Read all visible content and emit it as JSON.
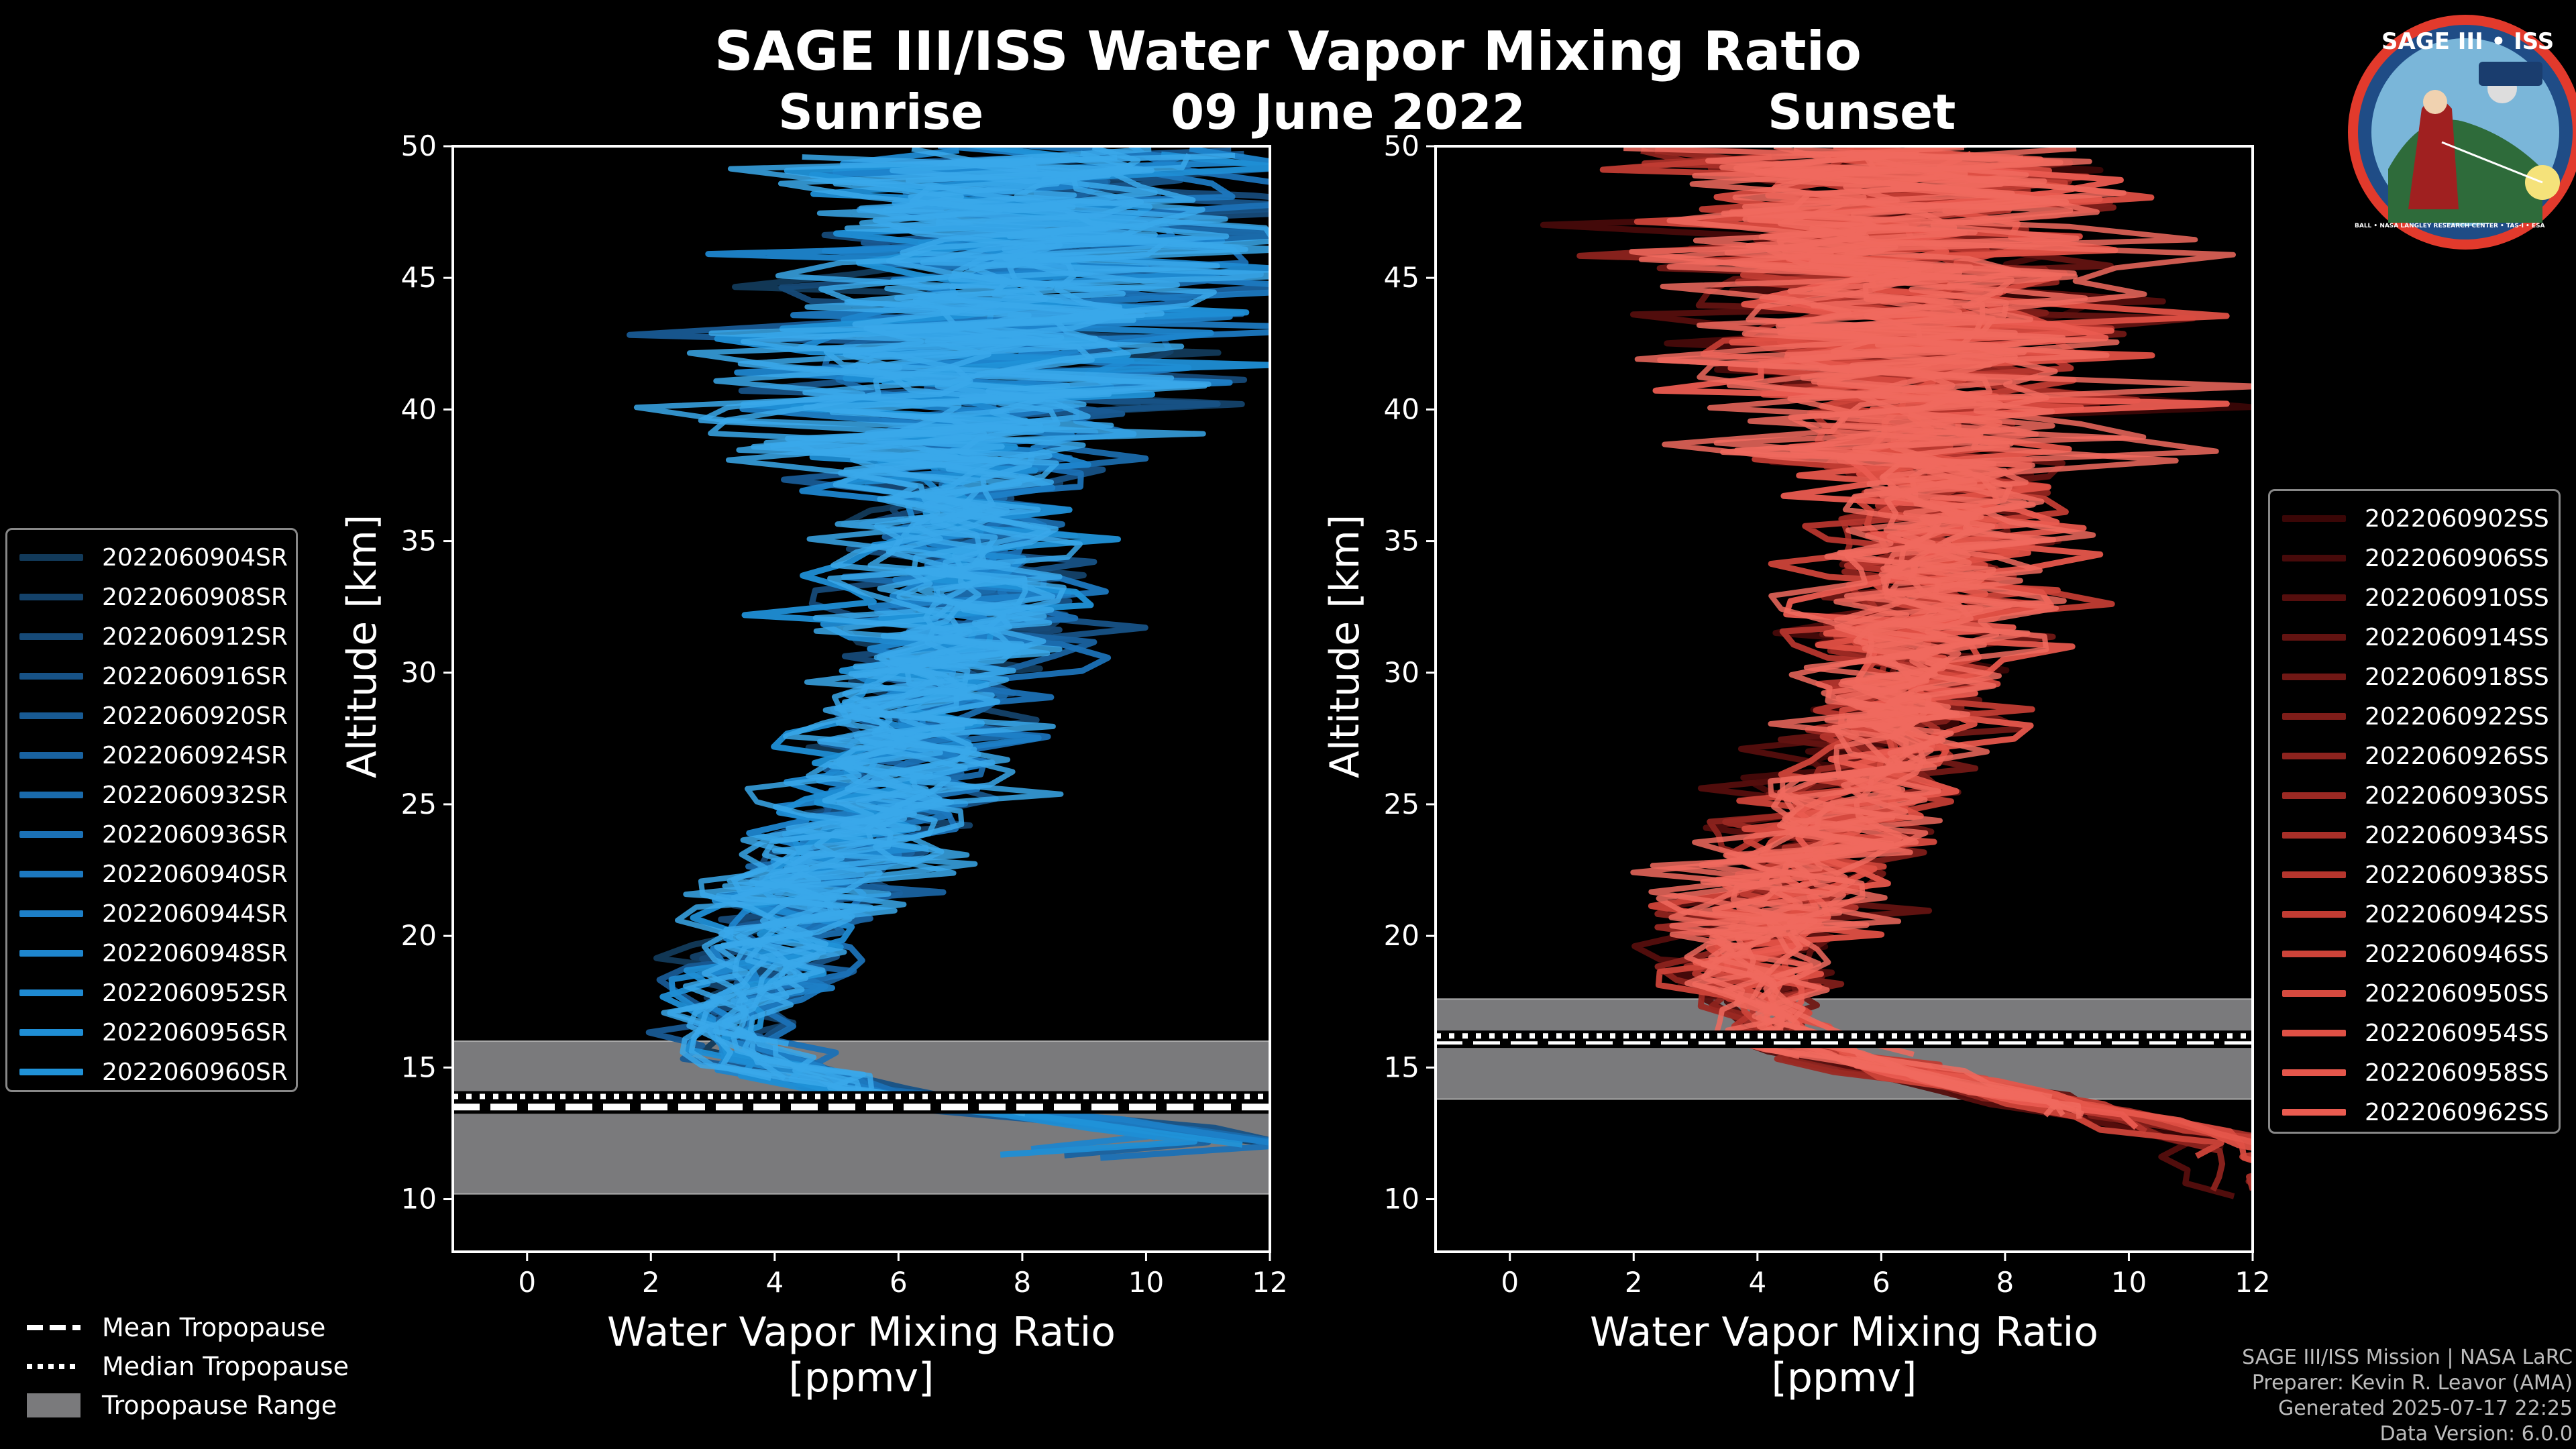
{
  "header": {
    "title": "SAGE III/ISS Water Vapor Mixing Ratio",
    "date": "09 June 2022",
    "left_label": "Sunrise",
    "right_label": "Sunset"
  },
  "colors": {
    "sunrise": "#1f8fd6",
    "sunset": "#e8544a",
    "tropopause_range": "#7a7a7c",
    "frame": "#ffffff"
  },
  "logo": {
    "title": "SAGE III • ISS",
    "ring_text": "BALL • NASA LANGLEY RESEARCH CENTER • TAS-I • ESA"
  },
  "chart_data": [
    {
      "type": "line",
      "panel": "Sunrise",
      "xlabel": "Water Vapor Mixing Ratio\n[ppmv]",
      "ylabel": "Altitude [km]",
      "xlim": [
        -1.2,
        12
      ],
      "ylim": [
        8,
        50
      ],
      "xticks": [
        0,
        2,
        4,
        6,
        8,
        10,
        12
      ],
      "yticks": [
        10,
        15,
        20,
        25,
        30,
        35,
        40,
        45,
        50
      ],
      "tropopause": {
        "range": [
          10.2,
          16.0
        ],
        "mean": 13.5,
        "median": 13.9
      },
      "mean_profile": [
        [
          12.0,
          12.0
        ],
        [
          13.0,
          9.0
        ],
        [
          14.0,
          5.5
        ],
        [
          15.0,
          4.0
        ],
        [
          16.0,
          3.2
        ],
        [
          17.0,
          3.3
        ],
        [
          18.0,
          3.6
        ],
        [
          19.0,
          3.9
        ],
        [
          20.0,
          4.0
        ],
        [
          21.0,
          4.2
        ],
        [
          22.0,
          4.5
        ],
        [
          23.0,
          4.9
        ],
        [
          24.0,
          5.4
        ],
        [
          25.0,
          5.8
        ],
        [
          26.0,
          6.0
        ],
        [
          27.0,
          6.0
        ],
        [
          28.0,
          6.2
        ],
        [
          29.0,
          6.4
        ],
        [
          30.0,
          6.6
        ],
        [
          31.0,
          6.8
        ],
        [
          32.0,
          7.0
        ],
        [
          33.0,
          7.1
        ],
        [
          34.0,
          7.1
        ],
        [
          35.0,
          7.0
        ],
        [
          36.0,
          6.9
        ],
        [
          37.0,
          6.8
        ],
        [
          38.0,
          6.9
        ],
        [
          39.0,
          7.0
        ],
        [
          40.0,
          7.2
        ],
        [
          42.0,
          7.5
        ],
        [
          44.0,
          7.8
        ],
        [
          46.0,
          8.0
        ],
        [
          48.0,
          8.2
        ],
        [
          50.0,
          8.4
        ]
      ],
      "series": [
        {
          "name": "2022060904SR",
          "color": "#123a5a"
        },
        {
          "name": "2022060908SR",
          "color": "#14426a"
        },
        {
          "name": "2022060912SR",
          "color": "#164a78"
        },
        {
          "name": "2022060916SR",
          "color": "#175286"
        },
        {
          "name": "2022060920SR",
          "color": "#185a93"
        },
        {
          "name": "2022060924SR",
          "color": "#1962a0"
        },
        {
          "name": "2022060932SR",
          "color": "#1a6aab"
        },
        {
          "name": "2022060936SR",
          "color": "#1b71b6"
        },
        {
          "name": "2022060940SR",
          "color": "#1c78bf"
        },
        {
          "name": "2022060944SR",
          "color": "#1d7fc7"
        },
        {
          "name": "2022060948SR",
          "color": "#1e85cd"
        },
        {
          "name": "2022060952SR",
          "color": "#1f8ad2"
        },
        {
          "name": "2022060956SR",
          "color": "#1f8ed5"
        },
        {
          "name": "2022060960SR",
          "color": "#2092d8"
        }
      ]
    },
    {
      "type": "line",
      "panel": "Sunset",
      "xlabel": "Water Vapor Mixing Ratio\n[ppmv]",
      "ylabel": "Altitude [km]",
      "xlim": [
        -1.2,
        12
      ],
      "ylim": [
        8,
        50
      ],
      "xticks": [
        0,
        2,
        4,
        6,
        8,
        10,
        12
      ],
      "yticks": [
        10,
        15,
        20,
        25,
        30,
        35,
        40,
        45,
        50
      ],
      "tropopause": {
        "range": [
          13.8,
          17.6
        ],
        "mean": 16.0,
        "median": 16.2
      },
      "mean_profile": [
        [
          10.0,
          12.0
        ],
        [
          12.0,
          12.0
        ],
        [
          14.0,
          8.0
        ],
        [
          15.0,
          6.0
        ],
        [
          16.0,
          4.6
        ],
        [
          17.0,
          4.2
        ],
        [
          18.0,
          4.0
        ],
        [
          19.0,
          4.0
        ],
        [
          20.0,
          4.1
        ],
        [
          21.0,
          4.2
        ],
        [
          22.0,
          4.4
        ],
        [
          23.0,
          4.7
        ],
        [
          24.0,
          5.0
        ],
        [
          25.0,
          5.3
        ],
        [
          26.0,
          5.6
        ],
        [
          27.0,
          5.9
        ],
        [
          28.0,
          6.2
        ],
        [
          29.0,
          6.4
        ],
        [
          30.0,
          6.5
        ],
        [
          31.0,
          6.6
        ],
        [
          32.0,
          6.7
        ],
        [
          33.0,
          6.8
        ],
        [
          34.0,
          6.9
        ],
        [
          35.0,
          6.9
        ],
        [
          36.0,
          6.9
        ],
        [
          37.0,
          6.8
        ],
        [
          38.0,
          6.7
        ],
        [
          39.0,
          6.6
        ],
        [
          40.0,
          6.5
        ],
        [
          42.0,
          6.5
        ],
        [
          44.0,
          6.4
        ],
        [
          46.0,
          6.3
        ],
        [
          48.0,
          6.2
        ],
        [
          50.0,
          6.0
        ]
      ],
      "series": [
        {
          "name": "2022060902SS",
          "color": "#3a0606"
        },
        {
          "name": "2022060906SS",
          "color": "#470a0a"
        },
        {
          "name": "2022060910SS",
          "color": "#550e0d"
        },
        {
          "name": "2022060914SS",
          "color": "#631311"
        },
        {
          "name": "2022060918SS",
          "color": "#711815"
        },
        {
          "name": "2022060922SS",
          "color": "#7f1d19"
        },
        {
          "name": "2022060926SS",
          "color": "#8d231e"
        },
        {
          "name": "2022060930SS",
          "color": "#9b2923"
        },
        {
          "name": "2022060934SS",
          "color": "#a82f28"
        },
        {
          "name": "2022060938SS",
          "color": "#b5352d"
        },
        {
          "name": "2022060942SS",
          "color": "#c13c33"
        },
        {
          "name": "2022060946SS",
          "color": "#cc4339"
        },
        {
          "name": "2022060950SS",
          "color": "#d64a3f"
        },
        {
          "name": "2022060954SS",
          "color": "#df5045"
        },
        {
          "name": "2022060958SS",
          "color": "#e5564b"
        },
        {
          "name": "2022060962SS",
          "color": "#ea5b50"
        }
      ]
    }
  ],
  "legend_bottom": [
    {
      "label": "Mean Tropopause",
      "style": "dashed"
    },
    {
      "label": "Median Tropopause",
      "style": "dotted"
    },
    {
      "label": "Tropopause Range",
      "style": "patch"
    }
  ],
  "footer": {
    "line1": "SAGE III/ISS Mission | NASA LaRC",
    "line2": "Preparer: Kevin R. Leavor (AMA)",
    "line3": "Generated 2025-07-17 22:25",
    "line4": "Data Version: 6.0.0"
  }
}
